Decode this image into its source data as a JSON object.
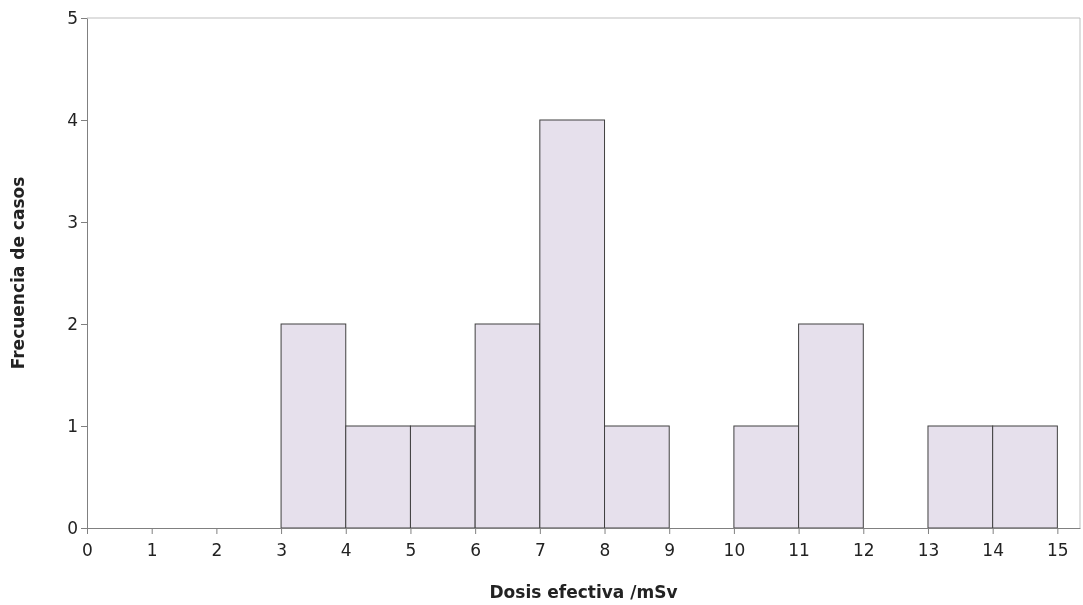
{
  "chart_data": {
    "type": "histogram",
    "xlabel": "Dosis efectiva  /mSv",
    "ylabel": "Frecuencia de casos",
    "bins": [
      0,
      1,
      2,
      3,
      4,
      5,
      6,
      7,
      8,
      9,
      10,
      11,
      12,
      13,
      14,
      15
    ],
    "values": [
      0,
      0,
      0,
      2,
      1,
      1,
      2,
      4,
      1,
      0,
      1,
      2,
      0,
      1,
      1
    ],
    "color": "#e6e0ec",
    "xlim": [
      0,
      15.35
    ],
    "xticks": [
      0,
      1,
      2,
      3,
      4,
      5,
      6,
      7,
      8,
      9,
      10,
      11,
      12,
      13,
      14,
      15
    ],
    "ylim": [
      0,
      5
    ],
    "yticks": [
      0,
      1,
      2,
      3,
      4,
      5
    ],
    "grid": false
  }
}
